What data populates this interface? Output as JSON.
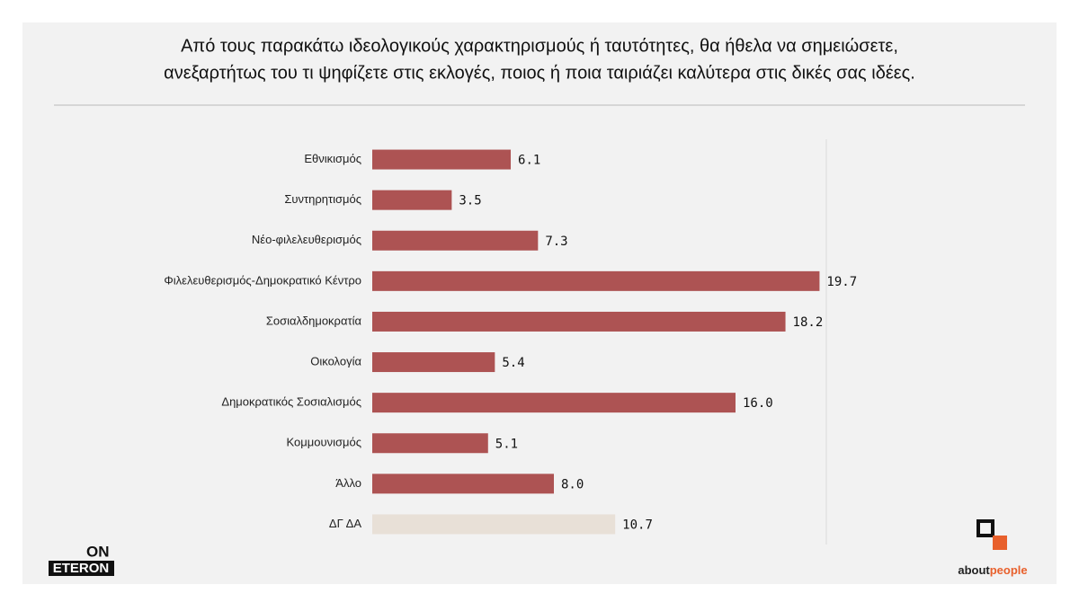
{
  "chart_data": {
    "type": "barh",
    "title": [
      "Από τους παρακάτω ιδεολογικούς χαρακτηρισμούς ή ταυτότητες, θα ήθελα να σημειώσετε,",
      "ανεξαρτήτως του τι ψηφίζετε στις εκλογές, ποιος ή ποια ταιριάζει καλύτερα στις δικές σας ιδέες."
    ],
    "categories": [
      "Εθνικισμός",
      "Συντηρητισμός",
      "Νέο-φιλελευθερισμός",
      "Φιλελευθερισμός-Δημοκρατικό Κέντρο",
      "Σοσιαλδημοκρατία",
      "Οικολογία",
      "Δημοκρατικός Σοσιαλισμός",
      "Κομμουνισμός",
      "Άλλο",
      "ΔΓ ΔΑ"
    ],
    "values": [
      6.1,
      3.5,
      7.3,
      19.7,
      18.2,
      5.4,
      16,
      5.1,
      8,
      10.7
    ],
    "value_labels": [
      "6.1",
      "3.5",
      "7.3",
      "19.7",
      "18.2",
      "5.4",
      "16.0",
      "5.1",
      "8.0",
      "10.7"
    ],
    "colors": [
      "#ad5353",
      "#ad5353",
      "#ad5353",
      "#ad5353",
      "#ad5353",
      "#ad5353",
      "#ad5353",
      "#ad5353",
      "#ad5353",
      "#e8e0d7"
    ],
    "xlim": [
      0,
      20
    ]
  },
  "logos": {
    "left": [
      "ON",
      "ETERON"
    ],
    "right": [
      "about",
      "people"
    ]
  }
}
